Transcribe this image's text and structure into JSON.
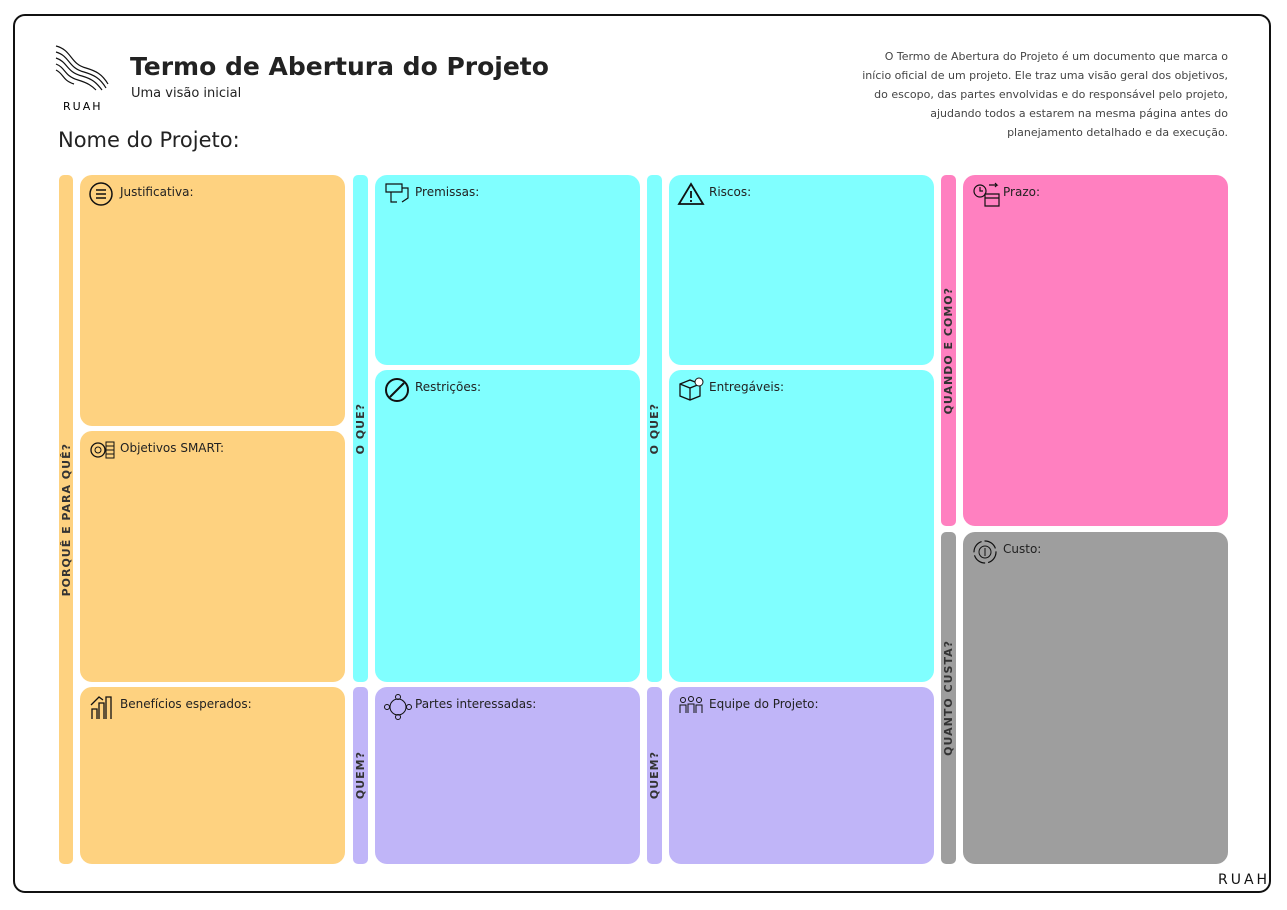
{
  "header": {
    "logo_text": "RUAH",
    "title": "Termo de Abertura do Projeto",
    "subtitle": "Uma visão inicial",
    "description": [
      "O Termo de Abertura do Projeto é um documento que marca o",
      "início oficial de um projeto. Ele traz uma visão geral dos objetivos,",
      "do escopo, das partes envolvidas e do responsável pelo projeto,",
      "ajudando todos a estarem na mesma página antes do",
      "planejamento detalhado e da execução."
    ]
  },
  "project_name_label": "Nome do Projeto:",
  "side_labels": [
    "PORQUÊ E PARA QUÊ?",
    "O QUE?",
    "QUEM?",
    "O QUE?",
    "QUEM?",
    "QUANDO E COMO?",
    "QUANTO CUSTA?"
  ],
  "sections": [
    "Justificativa:",
    "Objetivos SMART:",
    "Benefícios esperados:",
    "Premissas:",
    "Restrições:",
    "Partes interessadas:",
    "Riscos:",
    "Entregáveis:",
    "Equipe do Projeto:",
    "Prazo:",
    "Custo:"
  ],
  "footer": {
    "logo_text": "RUAH"
  }
}
